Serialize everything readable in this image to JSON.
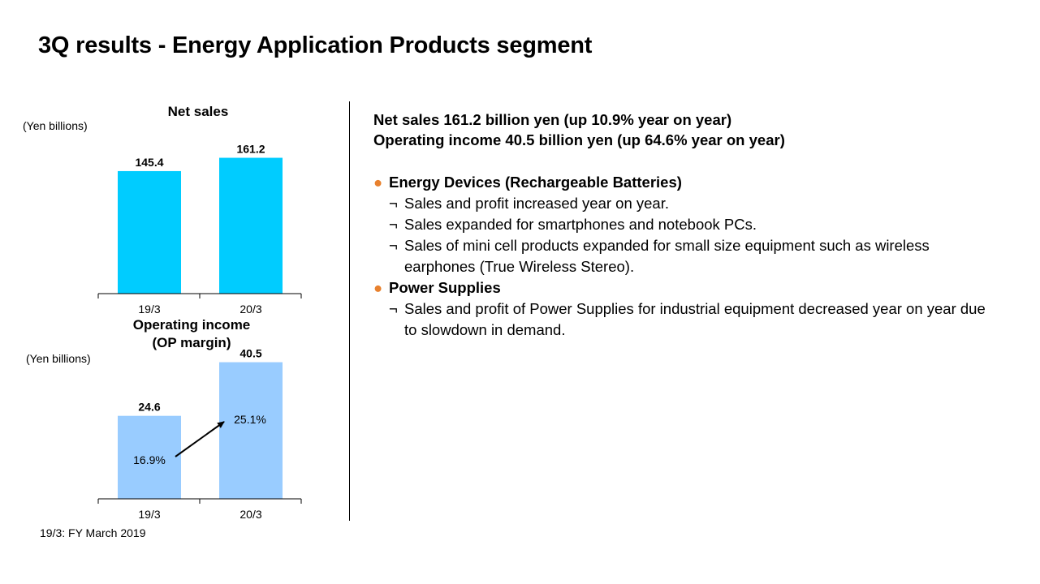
{
  "title": "3Q results - Energy Application Products segment",
  "footnote": "19/3: FY March 2019",
  "chart_data": [
    {
      "type": "bar",
      "title": "Net sales",
      "ylabel": "(Yen billions)",
      "categories": [
        "19/3",
        "20/3"
      ],
      "values": [
        145.4,
        161.2
      ],
      "value_labels": [
        "145.4",
        "161.2"
      ],
      "ylim": [
        0,
        180
      ],
      "color": "#00CCFF",
      "grid": false
    },
    {
      "type": "bar",
      "title": "Operating income\n(OP margin)",
      "title_lines": [
        "Operating income",
        "(OP margin)"
      ],
      "ylabel": "(Yen billions)",
      "categories": [
        "19/3",
        "20/3"
      ],
      "values": [
        24.6,
        40.5
      ],
      "value_labels": [
        "24.6",
        "40.5"
      ],
      "margins": [
        "16.9%",
        "25.1%"
      ],
      "ylim": [
        0,
        44
      ],
      "color": "#99CCFF",
      "grid": false
    }
  ],
  "summary": {
    "line1": "Net sales 161.2 billion yen (up 10.9% year on year)",
    "line2": "Operating income 40.5 billion yen (up 64.6% year on year)"
  },
  "bullets": [
    {
      "marker": "●",
      "title": "Energy Devices (Rechargeable Batteries)",
      "items": [
        {
          "mark": "¬",
          "text": "Sales and profit increased year on year."
        },
        {
          "mark": "¬",
          "text": "Sales expanded for smartphones and notebook PCs."
        },
        {
          "mark": "¬",
          "text": "Sales of mini cell products expanded for small size equipment such as wireless earphones (True Wireless Stereo)."
        }
      ]
    },
    {
      "marker": "●",
      "title": "Power Supplies",
      "items": [
        {
          "mark": "¬",
          "text": "Sales and profit of Power Supplies for industrial equipment decreased year on year due to slowdown in demand."
        }
      ]
    }
  ]
}
